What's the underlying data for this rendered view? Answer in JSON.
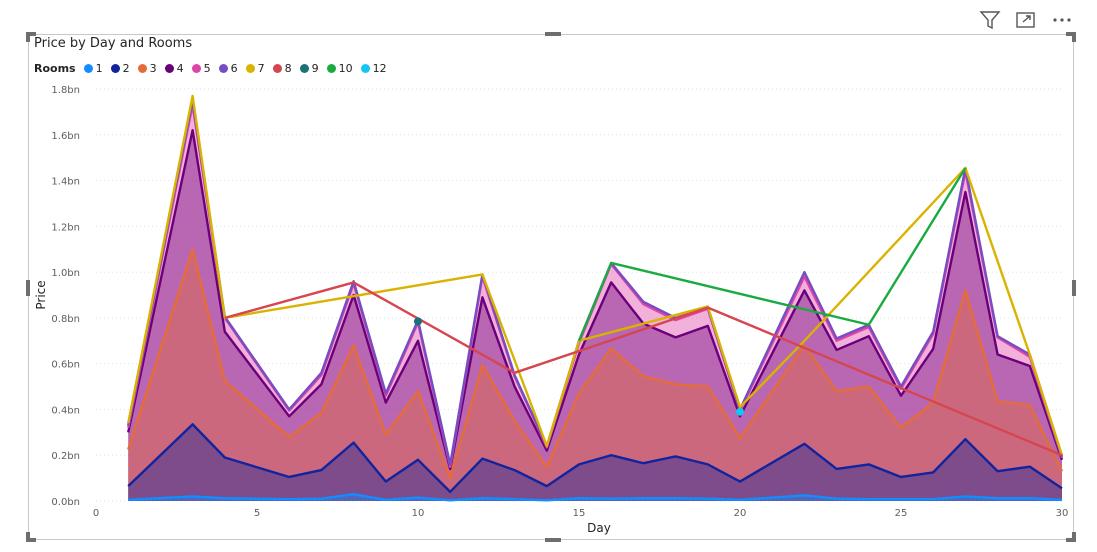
{
  "header": {
    "filter_icon": "filter-icon",
    "focus_icon": "focus-mode-icon",
    "more_icon": "more-options-icon"
  },
  "chart_data": {
    "type": "area",
    "title": "Price by Day and Rooms",
    "legend_title": "Rooms",
    "legend_position": "top-left",
    "xlabel": "Day",
    "ylabel": "Price",
    "xlim": [
      0,
      30
    ],
    "ylim": [
      0,
      1.8
    ],
    "x_ticks": [
      0,
      5,
      10,
      15,
      20,
      25,
      30
    ],
    "y_ticks": [
      {
        "v": 0,
        "label": "0.0bn"
      },
      {
        "v": 0.2,
        "label": "0.2bn"
      },
      {
        "v": 0.4,
        "label": "0.4bn"
      },
      {
        "v": 0.6,
        "label": "0.6bn"
      },
      {
        "v": 0.8,
        "label": "0.8bn"
      },
      {
        "v": 1.0,
        "label": "1.0bn"
      },
      {
        "v": 1.2,
        "label": "1.2bn"
      },
      {
        "v": 1.4,
        "label": "1.4bn"
      },
      {
        "v": 1.6,
        "label": "1.6bn"
      },
      {
        "v": 1.8,
        "label": "1.8bn"
      }
    ],
    "grid": true,
    "series": [
      {
        "name": "1",
        "color": "#118DFF",
        "fill": true,
        "x": [
          1,
          3,
          4,
          6,
          7,
          8,
          9,
          10,
          11,
          12,
          13,
          14,
          15,
          16,
          17,
          18,
          19,
          20,
          22,
          23,
          24,
          25,
          26,
          27,
          28,
          29,
          30
        ],
        "y": [
          0.005,
          0.02,
          0.012,
          0.008,
          0.01,
          0.03,
          0.005,
          0.015,
          0.003,
          0.012,
          0.008,
          0.003,
          0.012,
          0.01,
          0.012,
          0.012,
          0.01,
          0.005,
          0.025,
          0.01,
          0.008,
          0.008,
          0.008,
          0.02,
          0.012,
          0.012,
          0.005
        ]
      },
      {
        "name": "2",
        "color": "#12239E",
        "fill": true,
        "x": [
          1,
          3,
          4,
          6,
          7,
          8,
          9,
          10,
          11,
          12,
          13,
          14,
          15,
          16,
          17,
          18,
          19,
          20,
          22,
          23,
          24,
          25,
          26,
          27,
          28,
          29,
          30
        ],
        "y": [
          0.065,
          0.335,
          0.19,
          0.105,
          0.135,
          0.255,
          0.085,
          0.18,
          0.04,
          0.185,
          0.135,
          0.065,
          0.16,
          0.2,
          0.165,
          0.195,
          0.16,
          0.085,
          0.25,
          0.14,
          0.16,
          0.105,
          0.125,
          0.27,
          0.13,
          0.15,
          0.055
        ]
      },
      {
        "name": "3",
        "color": "#E66C37",
        "fill": true,
        "x": [
          1,
          3,
          4,
          6,
          7,
          8,
          9,
          10,
          11,
          12,
          13,
          14,
          15,
          16,
          17,
          18,
          19,
          20,
          22,
          23,
          24,
          25,
          26,
          27,
          28,
          29,
          30
        ],
        "y": [
          0.225,
          1.1,
          0.525,
          0.28,
          0.385,
          0.68,
          0.29,
          0.48,
          0.1,
          0.595,
          0.35,
          0.15,
          0.47,
          0.665,
          0.545,
          0.51,
          0.5,
          0.275,
          0.68,
          0.48,
          0.5,
          0.32,
          0.43,
          0.92,
          0.435,
          0.42,
          0.13
        ]
      },
      {
        "name": "4",
        "color": "#6B007B",
        "fill": true,
        "x": [
          1,
          3,
          4,
          6,
          7,
          8,
          9,
          10,
          11,
          12,
          13,
          14,
          15,
          16,
          17,
          18,
          19,
          20,
          22,
          23,
          24,
          25,
          26,
          27,
          28,
          29,
          30
        ],
        "y": [
          0.3,
          1.62,
          0.74,
          0.37,
          0.51,
          0.9,
          0.43,
          0.7,
          0.14,
          0.89,
          0.5,
          0.22,
          0.64,
          0.955,
          0.775,
          0.715,
          0.765,
          0.37,
          0.92,
          0.66,
          0.72,
          0.46,
          0.665,
          1.35,
          0.64,
          0.59,
          0.18
        ]
      },
      {
        "name": "5",
        "color": "#E044A7",
        "fill": true,
        "x": [
          1,
          3,
          4,
          6,
          7,
          8,
          9,
          10,
          11,
          12,
          13,
          14,
          15,
          16,
          17,
          18,
          19,
          20,
          22,
          23,
          24,
          25,
          26,
          27,
          28,
          29,
          30
        ],
        "y": [
          0.32,
          1.73,
          0.8,
          0.395,
          0.55,
          0.95,
          0.46,
          0.78,
          0.15,
          0.98,
          0.545,
          0.235,
          0.69,
          1.035,
          0.86,
          0.79,
          0.84,
          0.395,
          0.98,
          0.7,
          0.76,
          0.49,
          0.73,
          1.44,
          0.715,
          0.63,
          0.19
        ]
      },
      {
        "name": "6",
        "color": "#744EC2",
        "fill": false,
        "x": [
          1,
          3,
          4,
          6,
          7,
          8,
          9,
          10,
          11,
          12,
          13,
          14,
          15,
          16,
          17,
          18,
          19,
          20,
          22,
          23,
          24,
          25,
          26,
          27,
          28,
          29,
          30
        ],
        "y": [
          0.33,
          1.75,
          0.805,
          0.4,
          0.56,
          0.96,
          0.47,
          0.79,
          0.16,
          0.99,
          0.55,
          0.24,
          0.7,
          1.04,
          0.87,
          0.8,
          0.845,
          0.4,
          1.0,
          0.71,
          0.77,
          0.5,
          0.74,
          1.455,
          0.72,
          0.64,
          0.195
        ]
      },
      {
        "name": "7",
        "color": "#D9B300",
        "fill": false,
        "x": [
          1,
          3,
          4,
          12,
          14,
          15,
          19,
          20,
          22,
          27,
          29,
          30
        ],
        "y": [
          0.34,
          1.77,
          0.8,
          0.99,
          0.24,
          0.7,
          0.85,
          0.41,
          0.7,
          1.455,
          0.64,
          0.2
        ]
      },
      {
        "name": "8",
        "color": "#D64550",
        "fill": false,
        "x": [
          4,
          8,
          13,
          19,
          30
        ],
        "y": [
          0.8,
          0.955,
          0.56,
          0.845,
          0.2
        ]
      },
      {
        "name": "9",
        "color": "#197278",
        "fill": false,
        "x": [
          10
        ],
        "y": [
          0.785
        ]
      },
      {
        "name": "10",
        "color": "#1AAB40",
        "fill": false,
        "x": [
          15,
          16,
          24,
          27
        ],
        "y": [
          0.7,
          1.04,
          0.77,
          1.455
        ]
      },
      {
        "name": "12",
        "color": "#15C6F4",
        "fill": false,
        "x": [
          20
        ],
        "y": [
          0.39
        ]
      }
    ]
  }
}
